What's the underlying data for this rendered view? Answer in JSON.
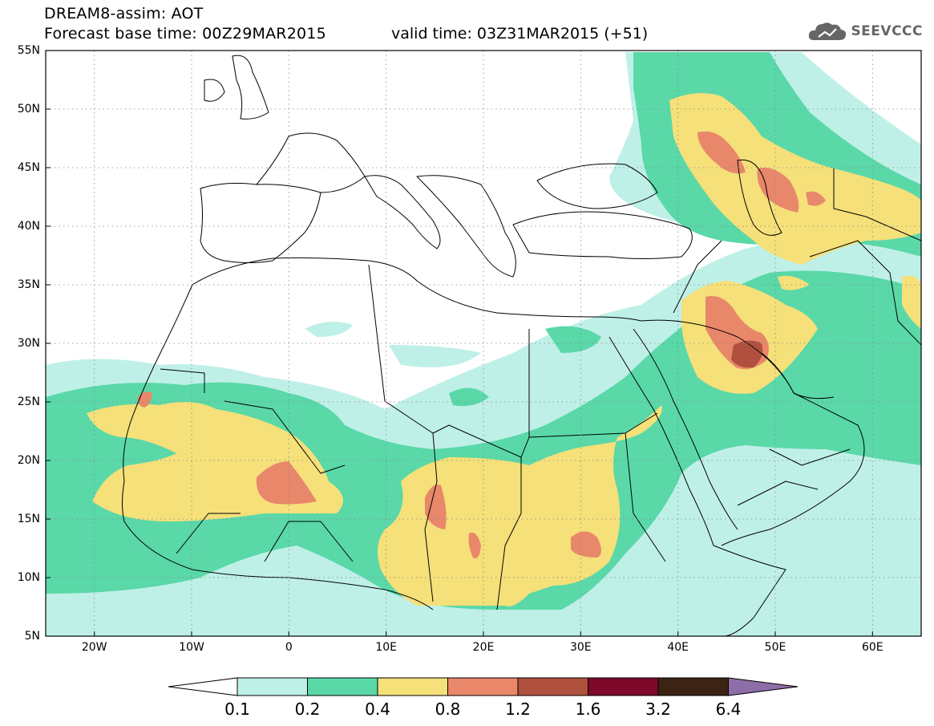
{
  "header": {
    "product": "DREAM8-assim: AOT",
    "base_time": "Forecast base time: 00Z29MAR2015",
    "valid_time": "valid time: 03Z31MAR2015 (+51)"
  },
  "logo": {
    "text": "SEEVCCC",
    "icon": "cloud-icon",
    "color": "#666666"
  },
  "map": {
    "lon_range": [
      -25,
      65
    ],
    "lat_range": [
      5,
      55
    ],
    "lat_ticks": [
      "55N",
      "50N",
      "45N",
      "40N",
      "35N",
      "30N",
      "25N",
      "20N",
      "15N",
      "10N",
      "5N"
    ],
    "lon_ticks": [
      "20W",
      "10W",
      "0",
      "10E",
      "20E",
      "30E",
      "40E",
      "50E",
      "60E"
    ],
    "grid": "dotted"
  },
  "colorbar": {
    "levels": [
      "0.1",
      "0.2",
      "0.4",
      "0.8",
      "1.2",
      "1.6",
      "3.2",
      "6.4"
    ],
    "colors": [
      "#ffffff",
      "#bff0e8",
      "#5ad8a8",
      "#f5e07a",
      "#e8876a",
      "#b0503e",
      "#7d0a2a",
      "#3b2414",
      "#8e6ea8"
    ]
  }
}
